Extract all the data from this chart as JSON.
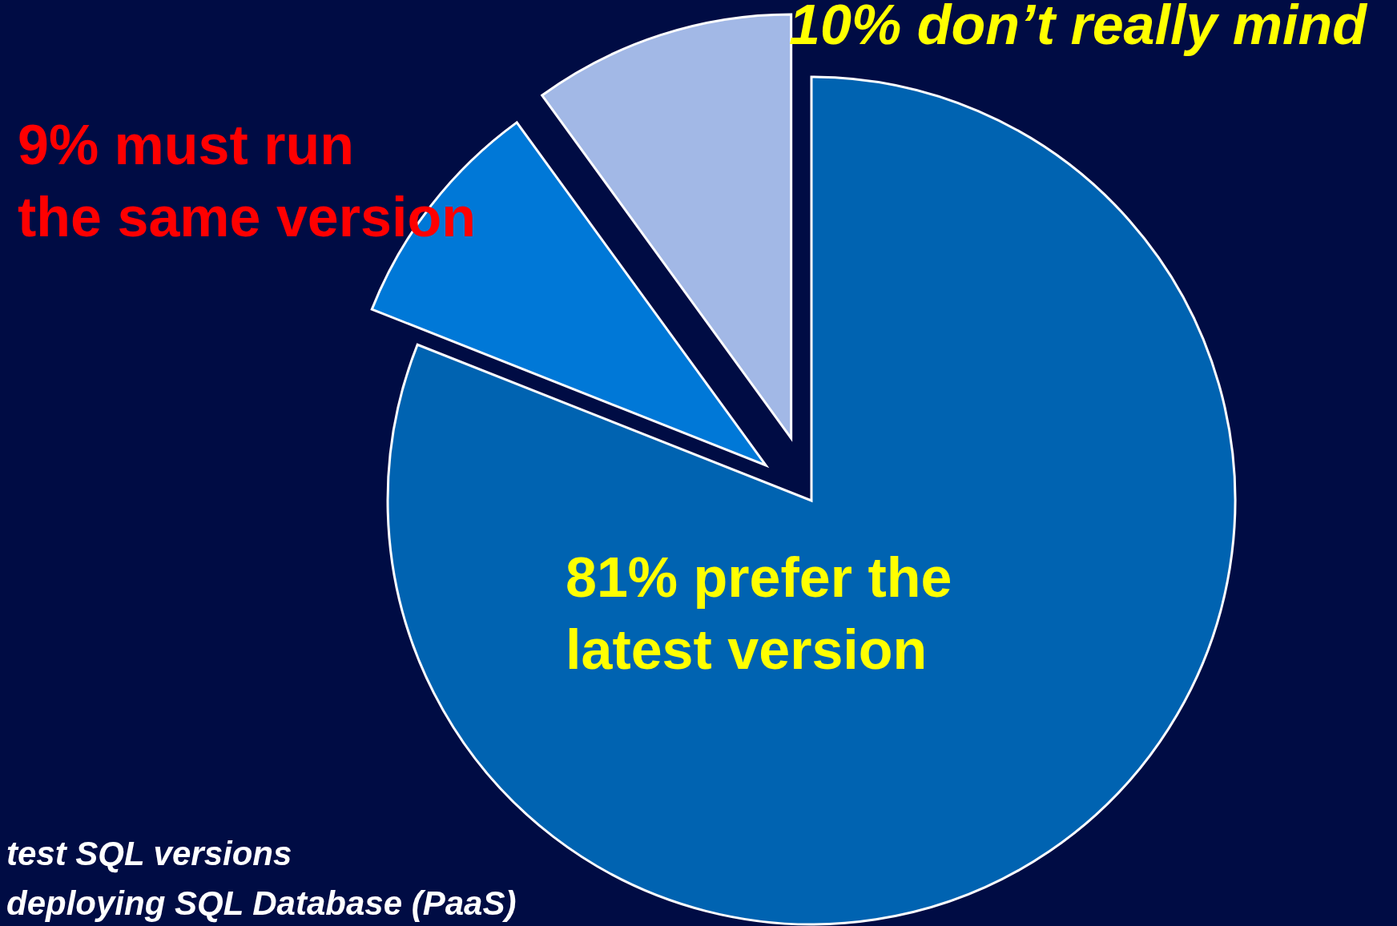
{
  "chart_data": {
    "type": "pie",
    "categories": [
      "prefer the latest version",
      "must run the same version",
      "don’t really mind"
    ],
    "values": [
      81,
      9,
      10
    ],
    "value_labels": [
      "81%",
      "9%",
      "10%"
    ],
    "colors": [
      "#0063b1",
      "#0078d7",
      "#a2b8e6"
    ],
    "annotations": [
      "test SQL versions",
      "deploying SQL Database (PaaS)"
    ]
  }
}
